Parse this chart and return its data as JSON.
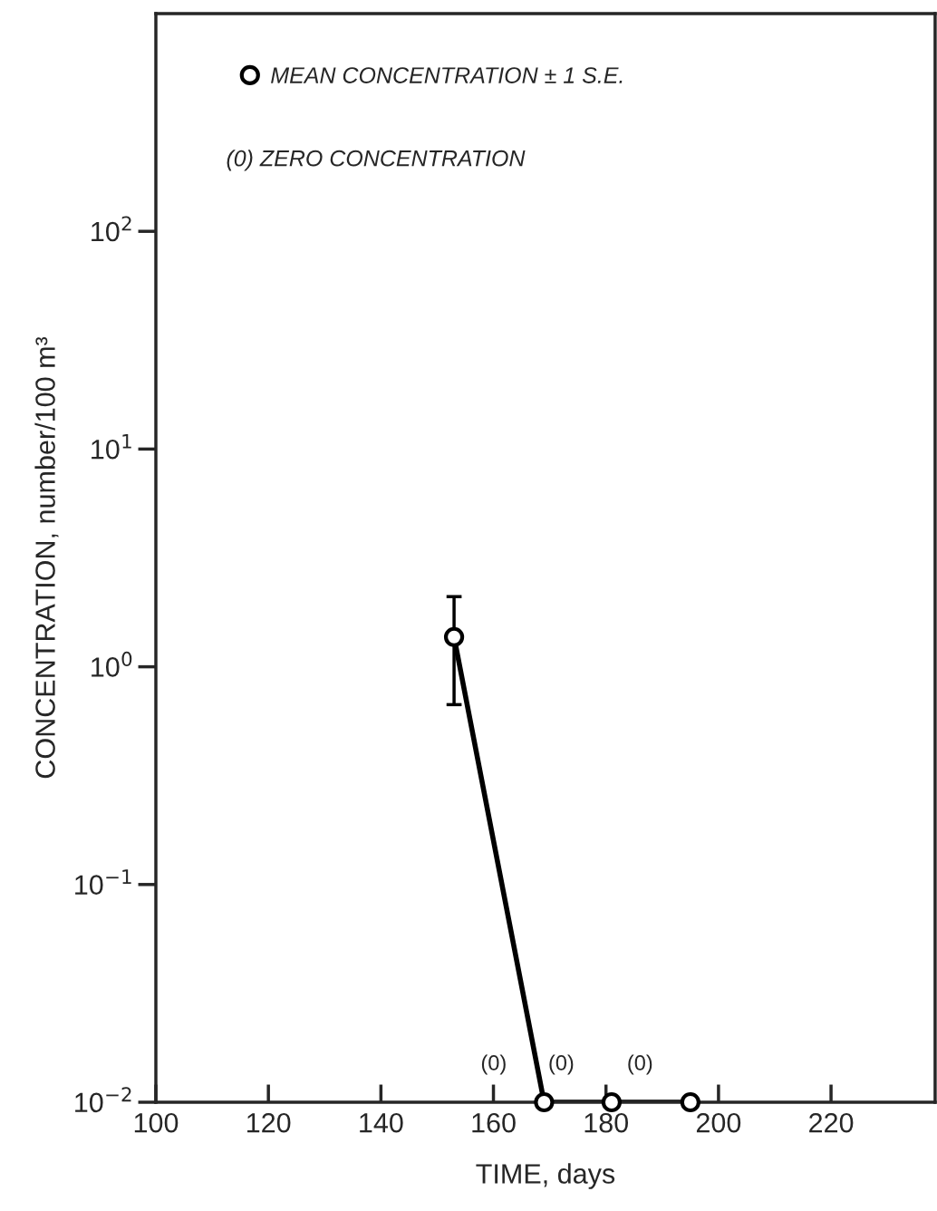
{
  "chart_data": {
    "type": "line",
    "xlabel": "TIME, days",
    "ylabel": "CONCENTRATION, number/100 m³",
    "series": [
      {
        "name": "MEAN CONCENTRATION ± 1 S.E.",
        "color": "#000000",
        "x": [
          153,
          169,
          181,
          195
        ],
        "values": [
          1.37,
          0.01,
          0.01,
          0.01
        ],
        "errors": [
          [
            0.67,
            2.1
          ],
          null,
          null,
          null
        ]
      }
    ],
    "annotations": [
      "(0) ZERO CONCENTRATION",
      {
        "text": "(0)",
        "x": 169,
        "y": 0.01
      },
      {
        "text": "(0)",
        "x": 181,
        "y": 0.01
      },
      {
        "text": "(0)",
        "x": 195,
        "y": 0.01
      }
    ],
    "log": "y",
    "xlim": [
      100,
      238.5
    ],
    "xticks": [
      100,
      120,
      140,
      160,
      180,
      200,
      220
    ],
    "ylim": [
      0.01,
      1000
    ],
    "yticks": [
      {
        "value": 0.01,
        "label": "10$^{−2}$"
      },
      {
        "value": 0.1,
        "label": "10$^{−1}$"
      },
      {
        "value": 1,
        "label": "10$^{0}$"
      },
      {
        "value": 10,
        "label": "10$^{1}$"
      },
      {
        "value": 100,
        "label": "10$^{2}$"
      }
    ],
    "marker": "circle",
    "line_style": "solid",
    "legend": "top left",
    "grid": false
  }
}
